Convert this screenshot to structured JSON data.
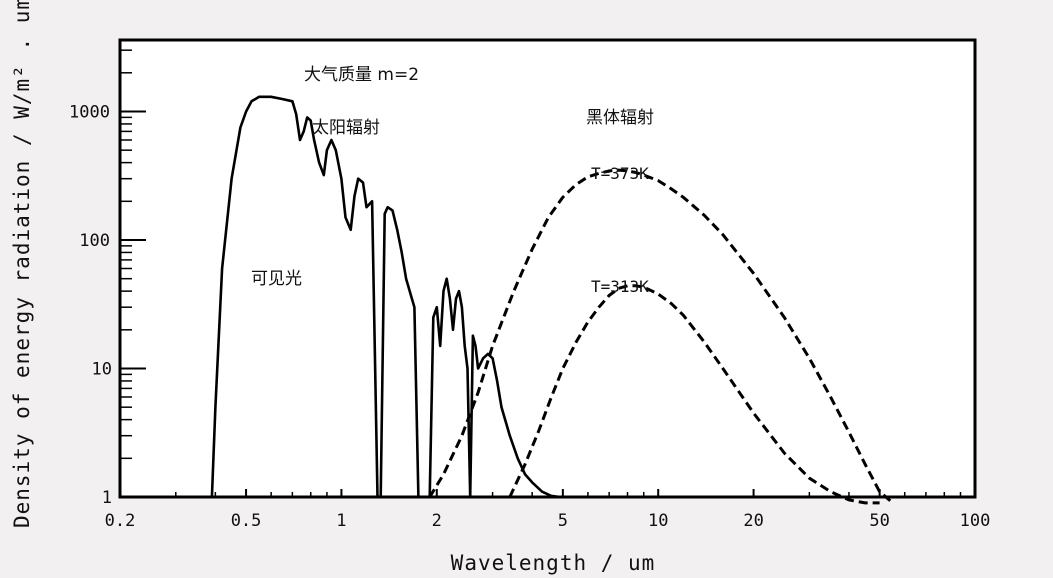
{
  "chart_data": {
    "type": "line",
    "xscale": "log",
    "yscale": "log",
    "xlim": [
      0.2,
      100
    ],
    "ylim": [
      1,
      3600
    ],
    "xlabel": "Wavelength / um",
    "ylabel": "Density of energy radiation / W/m² . um",
    "x_ticks": [
      0.2,
      0.5,
      1,
      2,
      5,
      10,
      20,
      50,
      100
    ],
    "x_tick_labels": [
      "0.2",
      "0.5",
      "1",
      "2",
      "5",
      "10",
      "20",
      "50",
      "100"
    ],
    "y_ticks": [
      1,
      10,
      100,
      1000
    ],
    "y_tick_labels": [
      "1",
      "10",
      "100",
      "1000"
    ],
    "grid": false,
    "annotations": [
      "大气质量 m=2",
      "太阳辐射",
      "黑体辐射",
      "可见光",
      "T=373K",
      "T=313K"
    ],
    "series": [
      {
        "style": "solid",
        "x": [
          0.39,
          0.4,
          0.42,
          0.45,
          0.48,
          0.5,
          0.52,
          0.55,
          0.6,
          0.65,
          0.7,
          0.72,
          0.74,
          0.76,
          0.78,
          0.8,
          0.82,
          0.85,
          0.88,
          0.9,
          0.93,
          0.96,
          1.0,
          1.03,
          1.07,
          1.1,
          1.13,
          1.17,
          1.2,
          1.25,
          1.3,
          1.33,
          1.37,
          1.4,
          1.45,
          1.5,
          1.55,
          1.6,
          1.7,
          1.75,
          1.8,
          1.87,
          1.9,
          1.95,
          2.0,
          2.05,
          2.1,
          2.15,
          2.2,
          2.25,
          2.3,
          2.35,
          2.4,
          2.45,
          2.5,
          2.55,
          2.6,
          2.65,
          2.7,
          2.8,
          2.9,
          3.0,
          3.1,
          3.2,
          3.4,
          3.6,
          3.8,
          4.0,
          4.3,
          4.6,
          4.9,
          5.1
        ],
        "y": [
          1,
          5,
          60,
          300,
          750,
          1000,
          1200,
          1300,
          1300,
          1250,
          1200,
          950,
          600,
          700,
          900,
          850,
          600,
          400,
          320,
          500,
          600,
          500,
          300,
          150,
          120,
          220,
          300,
          280,
          180,
          200,
          1,
          1,
          160,
          180,
          170,
          120,
          80,
          50,
          30,
          1,
          1,
          1,
          1,
          25,
          30,
          15,
          40,
          50,
          35,
          20,
          35,
          40,
          30,
          15,
          10,
          1,
          18,
          15,
          10,
          12,
          13,
          12,
          8,
          5,
          3,
          2,
          1.5,
          1.3,
          1.1,
          1.02,
          1.0,
          1.0
        ]
      },
      {
        "name": "T=373K",
        "style": "dashed",
        "x": [
          1.9,
          2.1,
          2.4,
          2.7,
          3.0,
          3.5,
          4.0,
          4.5,
          5.0,
          5.5,
          6.0,
          6.5,
          7.0,
          7.5,
          8.0,
          8.5,
          9.0,
          10.0,
          11.0,
          12.0,
          14.0,
          16.0,
          20.0,
          25.0,
          30.0,
          35.0,
          40.0,
          45.0,
          50.0,
          55.0
        ],
        "y": [
          1,
          1.5,
          3,
          6.5,
          15,
          40,
          85,
          150,
          215,
          270,
          310,
          330,
          345,
          350,
          345,
          335,
          320,
          290,
          250,
          215,
          155,
          110,
          55,
          25,
          12,
          6,
          3.2,
          1.8,
          1.1,
          0.9
        ]
      },
      {
        "name": "T=313K",
        "style": "dashed",
        "x": [
          3.4,
          3.8,
          4.2,
          4.6,
          5.0,
          5.5,
          6.0,
          6.5,
          7.0,
          7.5,
          8.0,
          8.5,
          9.0,
          10.0,
          11.0,
          12.0,
          14.0,
          16.0,
          20.0,
          25.0,
          30.0,
          35.0,
          40.0,
          45.0,
          50.0
        ],
        "y": [
          1,
          1.8,
          3.3,
          6,
          10,
          16,
          23,
          30,
          37,
          42,
          44,
          44,
          43,
          38,
          32,
          26,
          16,
          10,
          4.5,
          2.2,
          1.4,
          1.1,
          0.95,
          0.9,
          0.9
        ]
      }
    ]
  }
}
